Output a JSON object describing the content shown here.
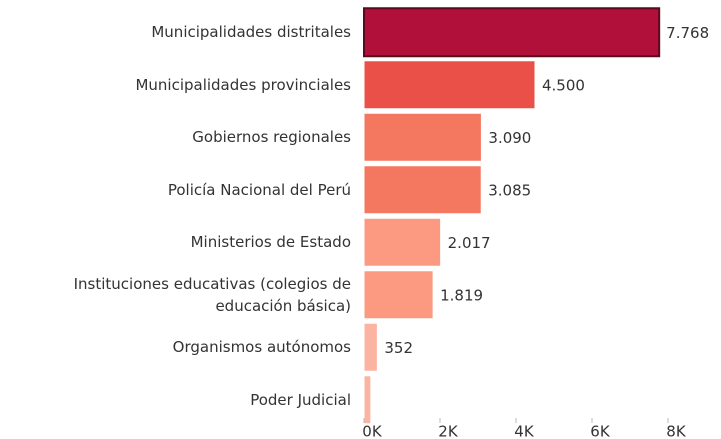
{
  "chart_data": {
    "type": "bar",
    "orientation": "horizontal",
    "categories": [
      "Municipalidades distritales",
      "Municipalidades provinciales",
      "Gobiernos regionales",
      "Policía Nacional del Perú",
      "Ministerios de Estado",
      "Instituciones educativas (colegios de educación básica)",
      "Organismos autónomos",
      "Poder Judicial"
    ],
    "values": [
      7768,
      4500,
      3090,
      3085,
      2017,
      1819,
      352,
      180
    ],
    "value_labels": [
      "7.768",
      "4.500",
      "3.090",
      "3.085",
      "2.017",
      "1.819",
      "352",
      null
    ],
    "colors": [
      "#b0103a",
      "#ea5047",
      "#f4775f",
      "#f4775f",
      "#fb9a80",
      "#fb9a80",
      "#fcb4a2",
      "#fcb4a2"
    ],
    "xlim": [
      0,
      8000
    ],
    "xticks": [
      {
        "value": 0,
        "label": "0K"
      },
      {
        "value": 2000,
        "label": "2K"
      },
      {
        "value": 4000,
        "label": "4K"
      },
      {
        "value": 6000,
        "label": "6K"
      },
      {
        "value": 8000,
        "label": "8K"
      }
    ],
    "grid": false
  }
}
